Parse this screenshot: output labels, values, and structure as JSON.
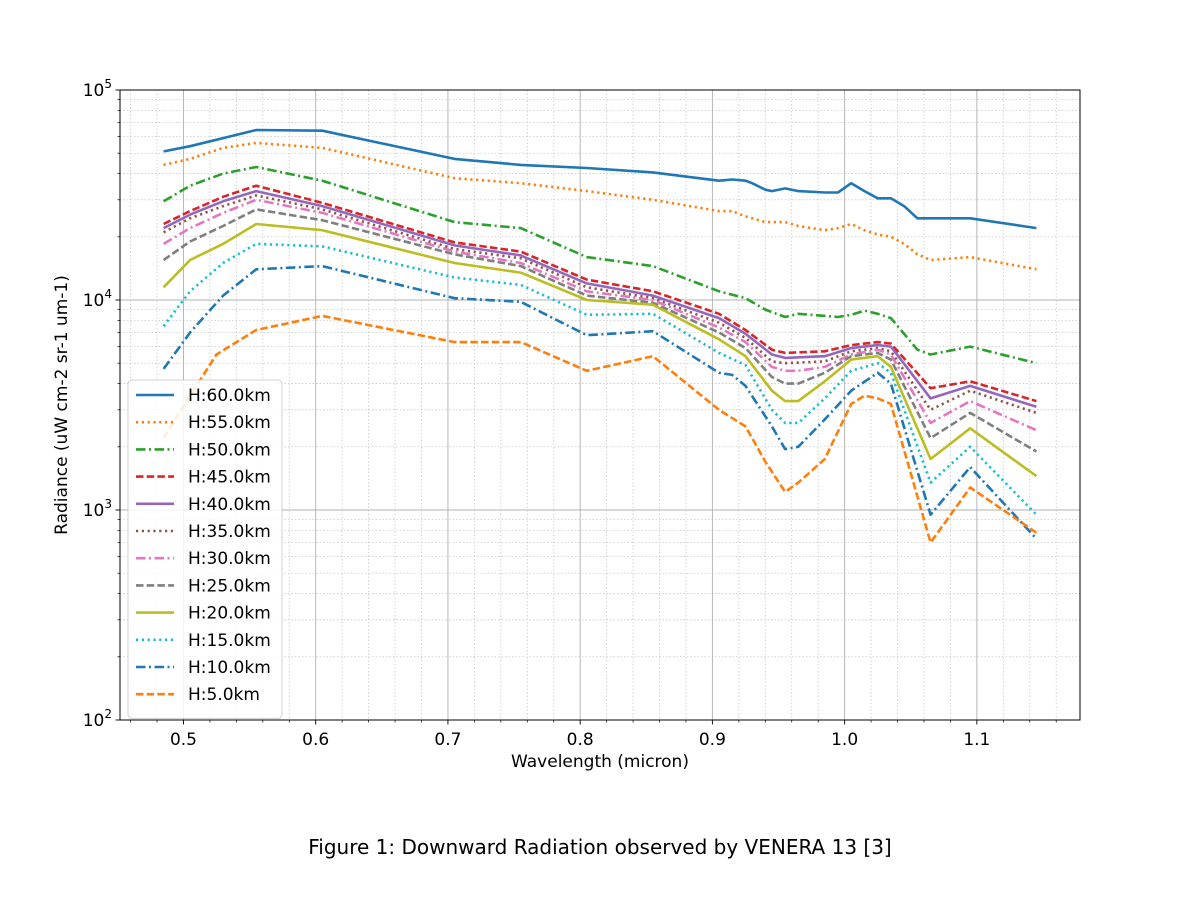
{
  "caption": "Figure 1: Downward Radiation observed by VENERA 13 [3]",
  "chart_data": {
    "type": "line",
    "xlabel": "Wavelength (micron)",
    "ylabel": "Radiance (uW cm-2 sr-1 um-1)",
    "xlim": [
      0.452,
      1.178
    ],
    "ylim": [
      100,
      100000
    ],
    "yscale": "log",
    "grid": true,
    "minor_grid": true,
    "legend_position": "lower-left",
    "xticks": [
      0.5,
      0.6,
      0.7,
      0.8,
      0.9,
      1.0,
      1.1
    ],
    "xtick_labels": [
      "0.5",
      "0.6",
      "0.7",
      "0.8",
      "0.9",
      "1.0",
      "1.1"
    ],
    "yticks": [
      100,
      1000,
      10000,
      100000
    ],
    "ytick_labels": [
      {
        "base": "10",
        "exp": "2"
      },
      {
        "base": "10",
        "exp": "3"
      },
      {
        "base": "10",
        "exp": "4"
      },
      {
        "base": "10",
        "exp": "5"
      }
    ],
    "series": [
      {
        "name": "H:60.0km",
        "color": "#1f77b4",
        "dash": "solid",
        "x": [
          0.485,
          0.505,
          0.53,
          0.555,
          0.605,
          0.705,
          0.755,
          0.805,
          0.855,
          0.905,
          0.915,
          0.925,
          0.93,
          0.94,
          0.945,
          0.955,
          0.965,
          0.985,
          0.995,
          1.005,
          1.015,
          1.025,
          1.035,
          1.045,
          1.055,
          1.065,
          1.095,
          1.145
        ],
        "y": [
          51000,
          54000,
          59000,
          64500,
          64000,
          47000,
          44000,
          42500,
          40500,
          37000,
          37500,
          37000,
          36000,
          33500,
          33000,
          34000,
          33000,
          32500,
          32500,
          36000,
          33000,
          30500,
          30500,
          28000,
          24500,
          24500,
          24500,
          22000
        ]
      },
      {
        "name": "H:55.0km",
        "color": "#ff7f0e",
        "dash": "dotted",
        "x": [
          0.485,
          0.505,
          0.53,
          0.555,
          0.605,
          0.705,
          0.755,
          0.805,
          0.855,
          0.905,
          0.915,
          0.925,
          0.94,
          0.955,
          0.965,
          0.985,
          0.995,
          1.005,
          1.015,
          1.025,
          1.035,
          1.045,
          1.055,
          1.065,
          1.095,
          1.145
        ],
        "y": [
          44000,
          47000,
          53000,
          56000,
          53000,
          38000,
          36000,
          33000,
          30000,
          26500,
          26500,
          25000,
          23500,
          23500,
          22500,
          21500,
          22000,
          23000,
          21500,
          20500,
          20000,
          18500,
          16500,
          15500,
          16000,
          14000
        ]
      },
      {
        "name": "H:50.0km",
        "color": "#2ca02c",
        "dash": "dashdot",
        "x": [
          0.485,
          0.505,
          0.53,
          0.555,
          0.605,
          0.705,
          0.755,
          0.805,
          0.855,
          0.905,
          0.925,
          0.94,
          0.955,
          0.965,
          0.985,
          0.995,
          1.005,
          1.015,
          1.025,
          1.035,
          1.055,
          1.065,
          1.095,
          1.145
        ],
        "y": [
          29500,
          35000,
          40000,
          43000,
          37000,
          23500,
          22000,
          16000,
          14500,
          11000,
          10200,
          9000,
          8300,
          8600,
          8400,
          8300,
          8500,
          8900,
          8600,
          8200,
          5800,
          5500,
          6000,
          5000
        ]
      },
      {
        "name": "H:45.0km",
        "color": "#d62728",
        "dash": "dashed",
        "x": [
          0.485,
          0.505,
          0.53,
          0.555,
          0.605,
          0.705,
          0.755,
          0.805,
          0.855,
          0.905,
          0.925,
          0.945,
          0.955,
          0.985,
          1.005,
          1.025,
          1.035,
          1.065,
          1.095,
          1.145
        ],
        "y": [
          23000,
          26500,
          31000,
          35000,
          29000,
          18800,
          17000,
          12500,
          11000,
          8600,
          7200,
          5800,
          5600,
          5700,
          6100,
          6300,
          6200,
          3800,
          4100,
          3300
        ]
      },
      {
        "name": "H:40.0km",
        "color": "#9467bd",
        "dash": "solid",
        "x": [
          0.485,
          0.505,
          0.53,
          0.555,
          0.605,
          0.705,
          0.755,
          0.805,
          0.855,
          0.905,
          0.925,
          0.945,
          0.955,
          0.985,
          1.005,
          1.025,
          1.035,
          1.065,
          1.095,
          1.145
        ],
        "y": [
          22000,
          25500,
          29500,
          33000,
          28000,
          18200,
          16300,
          12000,
          10500,
          8200,
          6900,
          5500,
          5300,
          5400,
          5900,
          6100,
          6000,
          3400,
          3900,
          3100
        ]
      },
      {
        "name": "H:35.0km",
        "color": "#8c564b",
        "dash": "dotted",
        "x": [
          0.485,
          0.505,
          0.53,
          0.555,
          0.605,
          0.705,
          0.755,
          0.805,
          0.855,
          0.905,
          0.925,
          0.945,
          0.955,
          0.985,
          1.005,
          1.025,
          1.035,
          1.065,
          1.095,
          1.145
        ],
        "y": [
          21000,
          24500,
          28000,
          31500,
          27000,
          17500,
          15800,
          11500,
          10200,
          7800,
          6600,
          5100,
          5000,
          5100,
          5700,
          5900,
          5700,
          3000,
          3700,
          2900
        ]
      },
      {
        "name": "H:30.0km",
        "color": "#e377c2",
        "dash": "dashdot",
        "x": [
          0.485,
          0.505,
          0.53,
          0.555,
          0.605,
          0.705,
          0.755,
          0.805,
          0.855,
          0.905,
          0.925,
          0.945,
          0.955,
          0.965,
          0.985,
          1.005,
          1.025,
          1.035,
          1.065,
          1.095,
          1.145
        ],
        "y": [
          18500,
          22000,
          26000,
          30000,
          26000,
          17000,
          15000,
          11000,
          10000,
          7400,
          6300,
          4800,
          4600,
          4600,
          4800,
          5500,
          5800,
          5500,
          2600,
          3300,
          2400
        ]
      },
      {
        "name": "H:25.0km",
        "color": "#7f7f7f",
        "dash": "dashed",
        "x": [
          0.485,
          0.505,
          0.53,
          0.555,
          0.605,
          0.705,
          0.755,
          0.805,
          0.855,
          0.905,
          0.925,
          0.945,
          0.955,
          0.965,
          0.985,
          1.005,
          1.025,
          1.035,
          1.065,
          1.095,
          1.145
        ],
        "y": [
          15500,
          19000,
          22500,
          27000,
          24000,
          16500,
          14500,
          10500,
          9700,
          7000,
          5900,
          4300,
          4000,
          4000,
          4500,
          5400,
          5600,
          5200,
          2200,
          2900,
          1900
        ]
      },
      {
        "name": "H:20.0km",
        "color": "#bcbd22",
        "dash": "solid",
        "x": [
          0.485,
          0.505,
          0.53,
          0.555,
          0.605,
          0.705,
          0.755,
          0.805,
          0.855,
          0.905,
          0.925,
          0.945,
          0.955,
          0.965,
          0.985,
          1.005,
          1.025,
          1.035,
          1.065,
          1.095,
          1.145
        ],
        "y": [
          11500,
          15500,
          18500,
          23000,
          21500,
          15000,
          13500,
          10000,
          9500,
          6500,
          5400,
          3700,
          3300,
          3300,
          4100,
          5200,
          5400,
          4800,
          1750,
          2450,
          1450
        ]
      },
      {
        "name": "H:15.0km",
        "color": "#17becf",
        "dash": "dotted",
        "x": [
          0.485,
          0.505,
          0.53,
          0.555,
          0.605,
          0.705,
          0.755,
          0.805,
          0.855,
          0.905,
          0.925,
          0.945,
          0.955,
          0.965,
          0.985,
          1.005,
          1.025,
          1.035,
          1.065,
          1.095,
          1.145
        ],
        "y": [
          7500,
          11000,
          15000,
          18500,
          18000,
          12800,
          11800,
          8500,
          8600,
          5600,
          4900,
          3000,
          2600,
          2600,
          3400,
          4600,
          5000,
          4500,
          1350,
          2000,
          950
        ]
      },
      {
        "name": "H:10.0km",
        "color": "#1f77b4",
        "dash": "dashdot",
        "x": [
          0.485,
          0.505,
          0.53,
          0.555,
          0.605,
          0.705,
          0.755,
          0.805,
          0.855,
          0.905,
          0.915,
          0.925,
          0.945,
          0.955,
          0.965,
          0.985,
          1.005,
          1.025,
          1.035,
          1.065,
          1.095,
          1.145
        ],
        "y": [
          4700,
          7000,
          10500,
          14000,
          14500,
          10200,
          9800,
          6800,
          7100,
          4500,
          4400,
          3900,
          2500,
          1950,
          2000,
          2700,
          3700,
          4500,
          4000,
          950,
          1600,
          730
        ]
      },
      {
        "name": "H:5.0km",
        "color": "#ff7f0e",
        "dash": "dashed",
        "x": [
          0.485,
          0.505,
          0.525,
          0.555,
          0.605,
          0.705,
          0.755,
          0.805,
          0.855,
          0.905,
          0.925,
          0.94,
          0.955,
          0.965,
          0.985,
          1.005,
          1.015,
          1.025,
          1.035,
          1.065,
          1.095,
          1.145
        ],
        "y": [
          2200,
          3500,
          5500,
          7200,
          8400,
          6300,
          6300,
          4600,
          5400,
          3000,
          2500,
          1700,
          1220,
          1350,
          1750,
          3200,
          3500,
          3400,
          3200,
          700,
          1280,
          780
        ]
      }
    ]
  }
}
